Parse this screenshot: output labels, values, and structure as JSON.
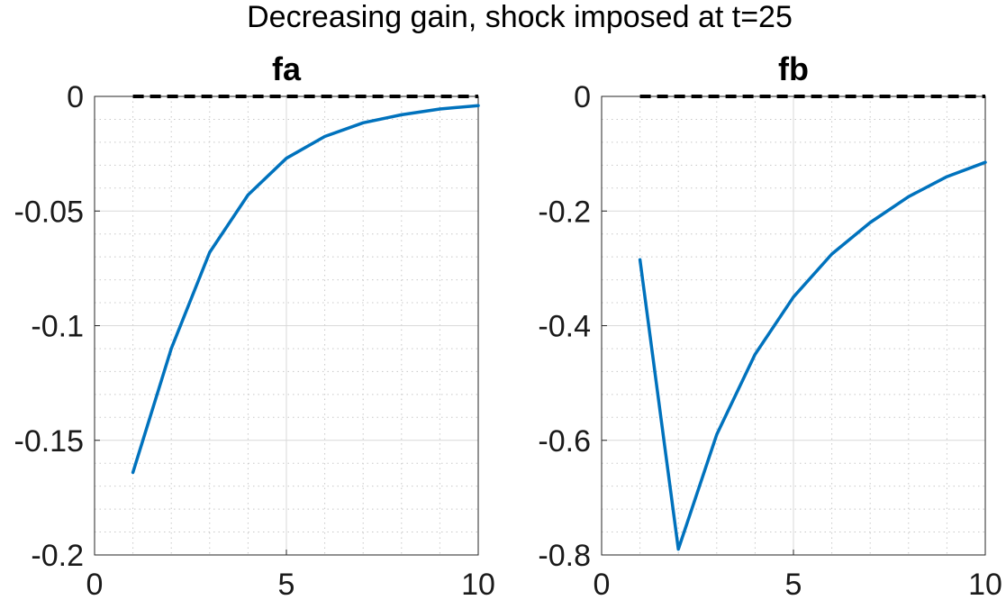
{
  "figure_title": "Decreasing gain, shock imposed at t=25",
  "colors": {
    "series": "#0072BD",
    "reference": "#000000"
  },
  "chart_data": [
    {
      "type": "line",
      "title": "fa",
      "xlim": [
        0,
        10
      ],
      "ylim": [
        -0.2,
        0
      ],
      "xticks": [
        0,
        5,
        10
      ],
      "xtick_labels": [
        "0",
        "5",
        "10"
      ],
      "yticks": [
        0,
        -0.05,
        -0.1,
        -0.15,
        -0.2
      ],
      "ytick_labels": [
        "0",
        "-0.05",
        "-0.1",
        "-0.15",
        "-0.2"
      ],
      "grid": true,
      "minor_grid": true,
      "series": [
        {
          "x": [
            1,
            2,
            3,
            4,
            5,
            6,
            7,
            8,
            9,
            10
          ],
          "values": [
            -0.164,
            -0.11,
            -0.068,
            -0.043,
            -0.027,
            -0.0175,
            -0.0115,
            -0.008,
            -0.0055,
            -0.004
          ]
        }
      ],
      "reference_line": {
        "y": 0,
        "x": [
          1,
          10
        ],
        "style": "dashed"
      }
    },
    {
      "type": "line",
      "title": "fb",
      "xlim": [
        0,
        10
      ],
      "ylim": [
        -0.8,
        0
      ],
      "xticks": [
        0,
        5,
        10
      ],
      "xtick_labels": [
        "0",
        "5",
        "10"
      ],
      "yticks": [
        0,
        -0.2,
        -0.4,
        -0.6,
        -0.8
      ],
      "ytick_labels": [
        "0",
        "-0.2",
        "-0.4",
        "-0.6",
        "-0.8"
      ],
      "grid": true,
      "minor_grid": true,
      "series": [
        {
          "x": [
            1,
            2,
            3,
            4,
            5,
            6,
            7,
            8,
            9,
            10
          ],
          "values": [
            -0.285,
            -0.79,
            -0.59,
            -0.45,
            -0.35,
            -0.275,
            -0.22,
            -0.175,
            -0.14,
            -0.115
          ]
        }
      ],
      "reference_line": {
        "y": 0,
        "x": [
          1,
          10
        ],
        "style": "dashed"
      }
    }
  ]
}
